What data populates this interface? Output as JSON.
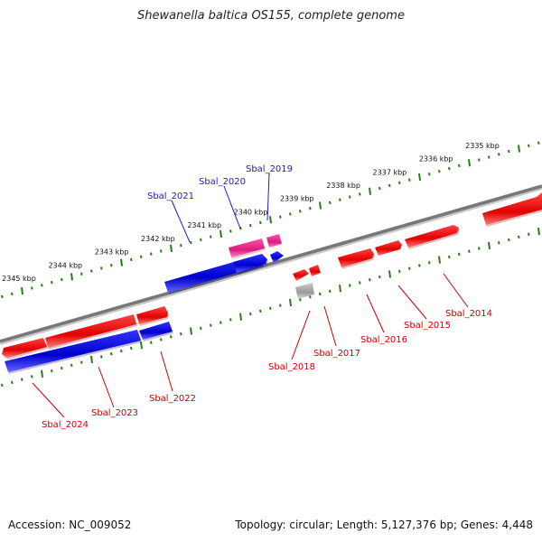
{
  "title": "Shewanella baltica OS155, complete genome",
  "footer": {
    "accession": "Accession: NC_009052",
    "summary": "Topology: circular; Length: 5,127,376 bp; Genes: 4,448"
  },
  "colors": {
    "forward": "#e60000",
    "reverse": "#0000d0",
    "pseudo": "#e0208a",
    "rna": "#aaaaaa",
    "backbone": "#808080",
    "ticks": "#2a7a1a",
    "label_forward": "#cc0000",
    "label_reverse": "#1a1acc"
  },
  "ruler": {
    "upper_labels": [
      "2335 kbp",
      "2336 kbp",
      "2337 kbp",
      "2338 kbp",
      "2339 kbp",
      "2340 kbp",
      "2341 kbp",
      "2342 kbp",
      "2343 kbp",
      "2344 kbp",
      "2345 kbp"
    ]
  },
  "genes": [
    {
      "name": "Sbal_2014",
      "strand": "+"
    },
    {
      "name": "Sbal_2015",
      "strand": "+"
    },
    {
      "name": "Sbal_2016",
      "strand": "+"
    },
    {
      "name": "Sbal_2017",
      "strand": "+"
    },
    {
      "name": "Sbal_2018",
      "strand": "+"
    },
    {
      "name": "Sbal_2019",
      "strand": "-"
    },
    {
      "name": "Sbal_2020",
      "strand": "-"
    },
    {
      "name": "Sbal_2021",
      "strand": "-"
    },
    {
      "name": "Sbal_2022",
      "strand": "+"
    },
    {
      "name": "Sbal_2023",
      "strand": "+"
    },
    {
      "name": "Sbal_2024",
      "strand": "+"
    }
  ]
}
